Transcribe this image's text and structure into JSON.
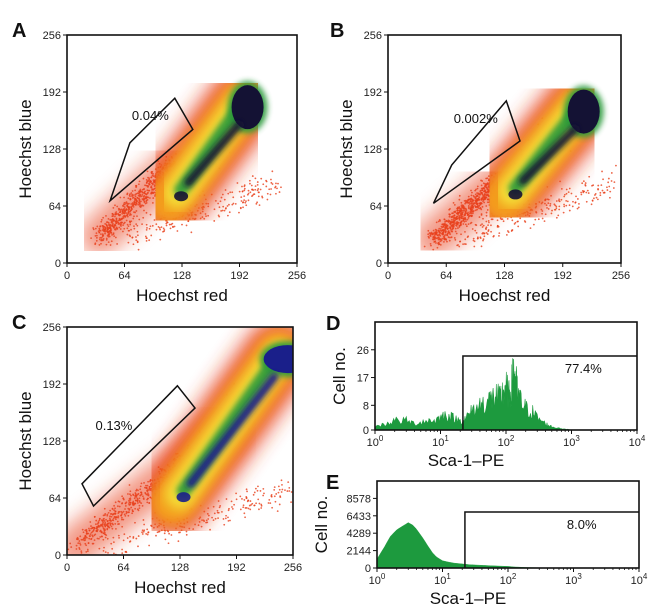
{
  "chart_data": [
    {
      "panel": "A",
      "type": "scatter",
      "xlabel": "Hoechst red",
      "ylabel": "Hoechst blue",
      "xlim": [
        0,
        256
      ],
      "ylim": [
        0,
        256
      ],
      "xticks": [
        "0",
        "64",
        "128",
        "192",
        "256"
      ],
      "yticks": [
        "0",
        "64",
        "128",
        "192",
        "256"
      ],
      "gate": {
        "label": "0.04%",
        "vertices": [
          [
            48,
            70
          ],
          [
            70,
            135
          ],
          [
            120,
            185
          ],
          [
            140,
            150
          ]
        ]
      },
      "density": {
        "main_population": {
          "from": [
            115,
            70
          ],
          "to": [
            196,
            180
          ]
        },
        "side_arm": {
          "from": [
            36,
            30
          ],
          "to": [
            120,
            110
          ]
        }
      }
    },
    {
      "panel": "B",
      "type": "scatter",
      "xlabel": "Hoechst red",
      "ylabel": "Hoechst blue",
      "xlim": [
        0,
        256
      ],
      "ylim": [
        0,
        256
      ],
      "xticks": [
        "0",
        "64",
        "128",
        "192",
        "256"
      ],
      "yticks": [
        "0",
        "64",
        "128",
        "192",
        "256"
      ],
      "gate": {
        "label": "0.002%",
        "vertices": [
          [
            50,
            67
          ],
          [
            70,
            110
          ],
          [
            130,
            182
          ],
          [
            145,
            137
          ]
        ]
      },
      "density": {
        "main_population": {
          "from": [
            128,
            72
          ],
          "to": [
            210,
            175
          ]
        },
        "side_arm": {
          "from": [
            50,
            27
          ],
          "to": [
            120,
            90
          ]
        }
      }
    },
    {
      "panel": "C",
      "type": "scatter",
      "xlabel": "Hoechst red",
      "ylabel": "Hoechst blue",
      "xlim": [
        0,
        256
      ],
      "ylim": [
        0,
        256
      ],
      "xticks": [
        "0",
        "64",
        "128",
        "192",
        "256"
      ],
      "yticks": [
        "0",
        "64",
        "128",
        "192",
        "256"
      ],
      "gate": {
        "label": "0.13%",
        "vertices": [
          [
            17,
            80
          ],
          [
            30,
            55
          ],
          [
            145,
            165
          ],
          [
            125,
            190
          ]
        ]
      },
      "density": {
        "main_population": {
          "from": [
            120,
            60
          ],
          "to": [
            240,
            225
          ]
        },
        "side_arm": {
          "from": [
            10,
            10
          ],
          "to": [
            180,
            140
          ]
        }
      }
    },
    {
      "panel": "D",
      "type": "histogram",
      "xlabel": "Sca-1–PE",
      "ylabel": "Cell no.",
      "xscale": "log",
      "xlim": [
        1,
        10000
      ],
      "ylim": [
        0,
        35
      ],
      "yticks": [
        "0",
        "8",
        "17",
        "26"
      ],
      "xtick_base": "10",
      "xtick_exponents": [
        "0",
        "1",
        "2",
        "3",
        "4"
      ],
      "gate": {
        "label": "77.4%",
        "from": 22,
        "to": 10000,
        "level": 24
      },
      "series": [
        {
          "x": [
            1,
            1.5,
            2,
            3,
            4,
            6,
            8,
            10,
            12,
            15,
            20,
            25,
            30,
            40,
            50,
            60,
            70,
            80,
            90,
            100,
            110,
            120,
            130,
            140,
            150,
            170,
            200,
            250,
            300,
            400,
            500,
            700,
            1000,
            2000,
            10000
          ],
          "values": [
            1,
            2,
            3,
            3,
            2,
            3,
            3,
            4,
            5,
            4,
            3,
            4,
            6,
            8,
            9,
            10,
            11,
            10,
            12,
            14,
            11,
            13,
            20,
            16,
            12,
            9,
            7,
            6,
            4,
            2,
            1,
            0.5,
            0,
            0,
            0
          ]
        }
      ]
    },
    {
      "panel": "E",
      "type": "histogram",
      "xlabel": "Sca-1–PE",
      "ylabel": "Cell no.",
      "xscale": "log",
      "xlim": [
        1,
        10000
      ],
      "ylim": [
        0,
        10722
      ],
      "yticks": [
        "0",
        "2144",
        "4289",
        "6433",
        "8578"
      ],
      "xtick_base": "10",
      "xtick_exponents": [
        "0",
        "1",
        "2",
        "3",
        "4"
      ],
      "gate": {
        "label": "8.0%",
        "from": 22,
        "to": 10000,
        "level": 6900
      },
      "series": [
        {
          "x": [
            1,
            1.3,
            1.6,
            2,
            2.5,
            3,
            3.5,
            4,
            5,
            6,
            7,
            8,
            10,
            12,
            15,
            20,
            25,
            30,
            40,
            50,
            70,
            100,
            130,
            200,
            400,
            10000
          ],
          "values": [
            1100,
            2600,
            3900,
            4700,
            5200,
            5600,
            5300,
            4800,
            3700,
            2700,
            1900,
            1400,
            900,
            750,
            600,
            500,
            420,
            380,
            330,
            300,
            250,
            200,
            120,
            60,
            10,
            0
          ]
        }
      ]
    }
  ],
  "colors": {
    "density_low": "#e8401a",
    "density_mid": "#f4a11c",
    "density_high": "#f5e33a",
    "density_peak": "#2c9a3a",
    "density_core": "#141234",
    "density_core_c": "#1a1f8a",
    "histogram_fill": "#1d9a3e"
  }
}
